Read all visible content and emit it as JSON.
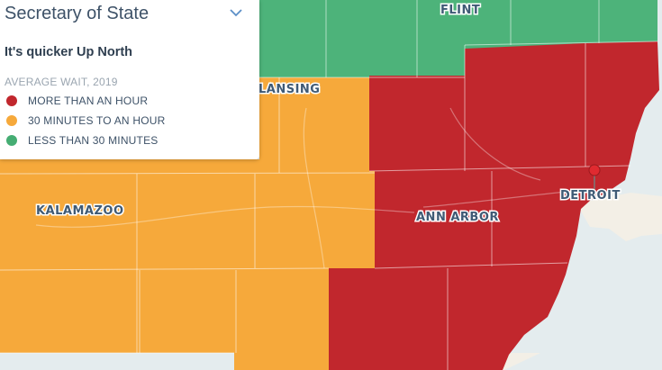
{
  "panel": {
    "title": "Secretary of State",
    "subtitle": "It's quicker Up North",
    "legend_heading": "AVERAGE WAIT, 2019",
    "legend": [
      {
        "label": "MORE THAN AN HOUR",
        "color": "#c1272d"
      },
      {
        "label": "30 MINUTES TO AN HOUR",
        "color": "#f6a93b"
      },
      {
        "label": "LESS THAN 30 MINUTES",
        "color": "#45ad73"
      }
    ]
  },
  "map": {
    "cities": [
      "FLINT",
      "LANSING",
      "KALAMAZOO",
      "ANN ARBOR",
      "DETROIT"
    ],
    "water_color": "#e4ecee",
    "land_color": "#f3efe6"
  }
}
